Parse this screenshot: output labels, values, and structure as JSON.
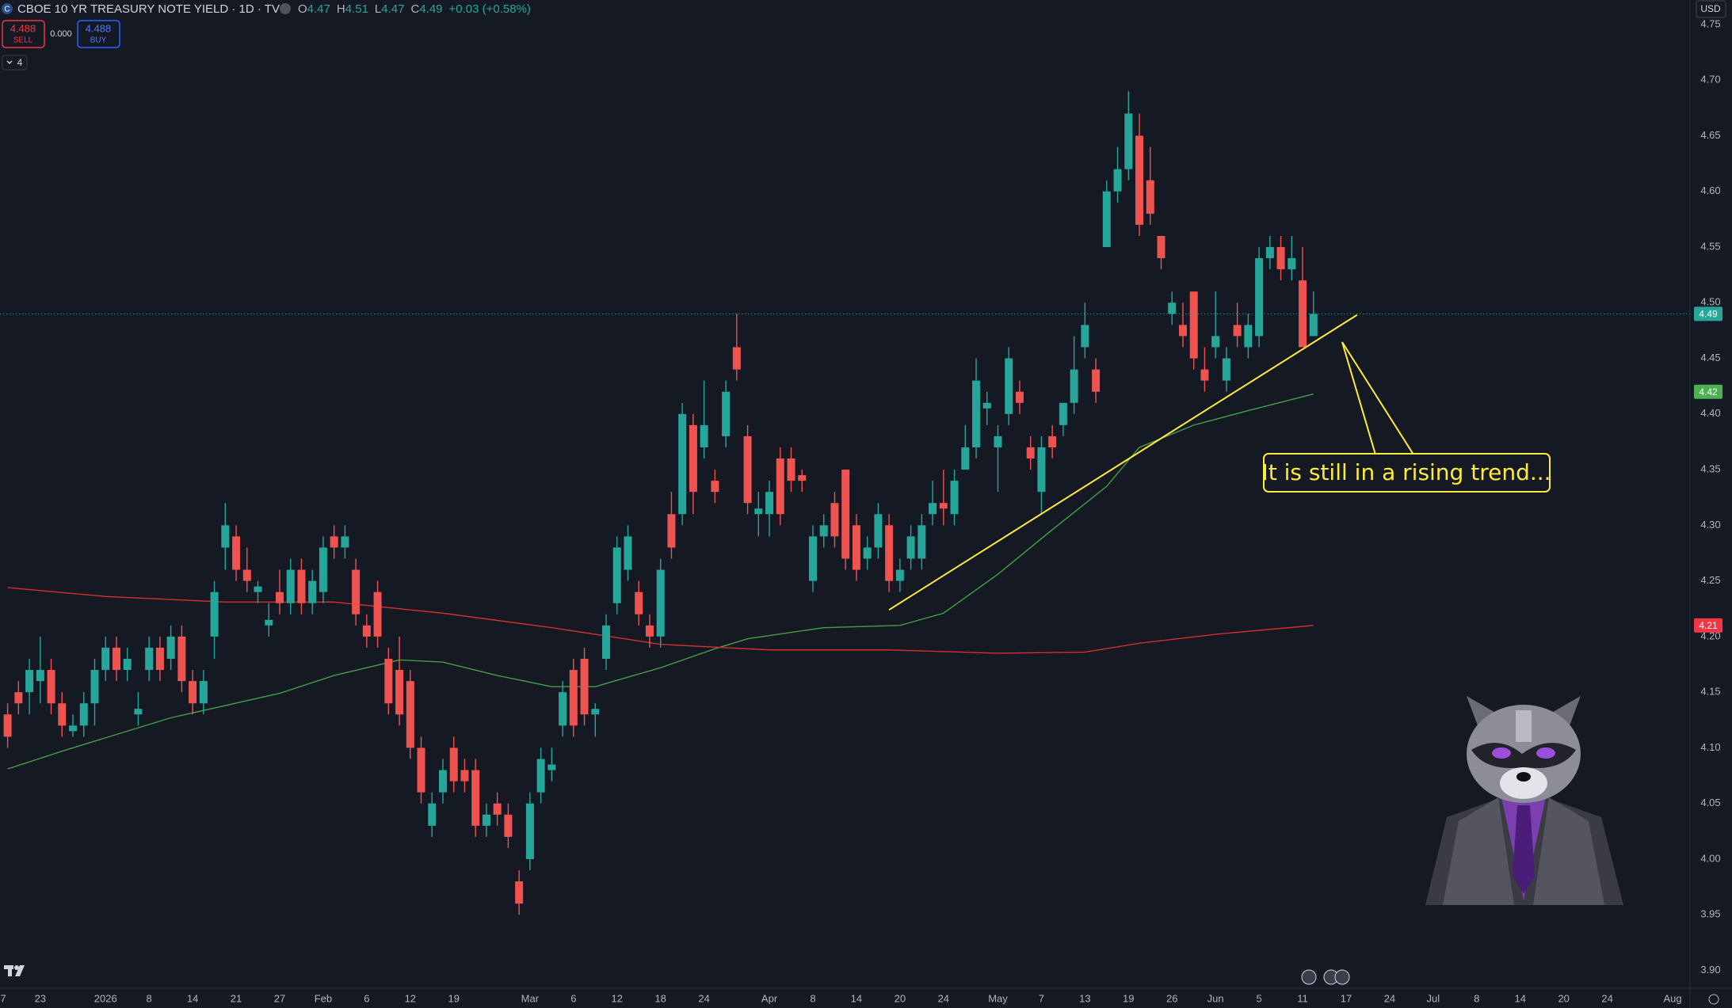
{
  "header": {
    "logo_letter": "C",
    "symbol": "CBOE 10 YR TREASURY NOTE YIELD · 1D · TVC",
    "ohlc": [
      {
        "key": "O",
        "value": "4.47"
      },
      {
        "key": "H",
        "value": "4.51"
      },
      {
        "key": "L",
        "value": "4.47"
      },
      {
        "key": "C",
        "value": "4.49"
      }
    ],
    "change": "+0.03 (+0.58%)",
    "sell": {
      "price": "4.488",
      "label": "SELL"
    },
    "spread": "0.000",
    "buy": {
      "price": "4.488",
      "label": "BUY"
    },
    "indicators": "4",
    "currency": "USD"
  },
  "chart_data": {
    "type": "candlestick",
    "categories": [
      null,
      null,
      null,
      null,
      null,
      null,
      null,
      null,
      null,
      null,
      null,
      null,
      null,
      null,
      null,
      null,
      null,
      null,
      null,
      null,
      null,
      null,
      null,
      null,
      null,
      null,
      null,
      null,
      null,
      null,
      null,
      null,
      null,
      null,
      null,
      null,
      null,
      null,
      null,
      null,
      null,
      null,
      null,
      null,
      null,
      null,
      null,
      null,
      null,
      null,
      null,
      null,
      null,
      null,
      null,
      null,
      null,
      null,
      null,
      null,
      null,
      null,
      null,
      null,
      null,
      null,
      null,
      null,
      null,
      null,
      null,
      null,
      null,
      null,
      null,
      null,
      null,
      null,
      null,
      null,
      null,
      null,
      null,
      null,
      null,
      null,
      null,
      null,
      null,
      null,
      null,
      null,
      null,
      null,
      null,
      null,
      null,
      null,
      null,
      null,
      null,
      null,
      null,
      null,
      null,
      null,
      null,
      null,
      null,
      null,
      null,
      null,
      null,
      null,
      null,
      null,
      null,
      null,
      null,
      null,
      null
    ],
    "open": [
      4.13,
      4.15,
      4.15,
      4.16,
      4.17,
      4.14,
      4.115,
      4.12,
      4.14,
      4.17,
      4.19,
      4.17,
      4.13,
      4.17,
      4.19,
      4.18,
      4.2,
      4.16,
      4.14,
      4.2,
      4.28,
      4.29,
      4.26,
      4.24,
      4.21,
      4.24,
      4.23,
      4.26,
      4.23,
      4.24,
      4.29,
      4.28,
      4.26,
      4.21,
      4.24,
      4.18,
      4.17,
      4.16,
      4.1,
      4.03,
      4.06,
      4.1,
      4.08,
      4.08,
      4.03,
      4.05,
      4.04,
      3.98,
      4.0,
      4.06,
      4.08,
      4.12,
      4.17,
      4.18,
      4.13,
      4.18,
      4.23,
      4.26,
      4.24,
      4.21,
      4.2,
      4.31,
      4.31,
      4.39,
      4.37,
      4.34,
      4.38,
      4.46,
      4.38,
      4.31,
      4.31,
      4.36,
      4.36,
      4.345,
      4.25,
      4.29,
      4.32,
      4.35,
      4.3,
      4.27,
      4.28,
      4.3,
      4.25,
      4.27,
      4.27,
      4.31,
      4.32,
      4.31,
      4.35,
      4.37,
      4.405,
      4.37,
      4.4,
      4.42,
      4.37,
      4.33,
      4.38,
      4.39,
      4.41,
      4.46,
      4.44,
      4.55,
      4.6,
      4.62,
      4.65,
      4.61,
      4.56,
      4.49,
      4.48,
      4.51,
      4.44,
      4.46,
      4.43,
      4.48,
      4.46,
      4.47,
      4.54,
      4.55,
      4.53,
      4.52,
      4.47
    ],
    "high": [
      4.14,
      4.16,
      4.18,
      4.2,
      4.18,
      4.15,
      4.13,
      4.15,
      4.18,
      4.2,
      4.2,
      4.19,
      4.15,
      4.2,
      4.2,
      4.21,
      4.21,
      4.17,
      4.17,
      4.25,
      4.32,
      4.3,
      4.28,
      4.25,
      4.23,
      4.26,
      4.27,
      4.27,
      4.26,
      4.29,
      4.3,
      4.3,
      4.27,
      4.22,
      4.25,
      4.19,
      4.2,
      4.17,
      4.11,
      4.06,
      4.09,
      4.11,
      4.09,
      4.09,
      4.05,
      4.06,
      4.05,
      3.99,
      4.06,
      4.1,
      4.1,
      4.16,
      4.18,
      4.19,
      4.14,
      4.22,
      4.29,
      4.3,
      4.25,
      4.22,
      4.27,
      4.33,
      4.41,
      4.4,
      4.43,
      4.35,
      4.43,
      4.49,
      4.39,
      4.33,
      4.34,
      4.37,
      4.37,
      4.35,
      4.3,
      4.31,
      4.33,
      4.35,
      4.31,
      4.29,
      4.32,
      4.31,
      4.27,
      4.3,
      4.31,
      4.34,
      4.35,
      4.35,
      4.39,
      4.45,
      4.42,
      4.39,
      4.46,
      4.43,
      4.38,
      4.38,
      4.39,
      4.41,
      4.47,
      4.5,
      4.45,
      4.61,
      4.64,
      4.69,
      4.67,
      4.64,
      4.56,
      4.51,
      4.5,
      4.51,
      4.46,
      4.51,
      4.46,
      4.5,
      4.49,
      4.55,
      4.56,
      4.56,
      4.56,
      4.55,
      4.51
    ],
    "low": [
      4.1,
      4.13,
      4.13,
      4.14,
      4.13,
      4.11,
      4.11,
      4.11,
      4.12,
      4.16,
      4.16,
      4.16,
      4.12,
      4.16,
      4.16,
      4.17,
      4.15,
      4.13,
      4.13,
      4.18,
      4.26,
      4.25,
      4.24,
      4.23,
      4.2,
      4.22,
      4.22,
      4.22,
      4.22,
      4.23,
      4.27,
      4.27,
      4.21,
      4.19,
      4.19,
      4.13,
      4.12,
      4.09,
      4.05,
      4.02,
      4.05,
      4.06,
      4.06,
      4.02,
      4.02,
      4.03,
      4.01,
      3.95,
      3.99,
      4.05,
      4.07,
      4.11,
      4.11,
      4.12,
      4.11,
      4.17,
      4.22,
      4.25,
      4.21,
      4.19,
      4.19,
      4.27,
      4.3,
      4.31,
      4.36,
      4.32,
      4.37,
      4.43,
      4.31,
      4.29,
      4.29,
      4.3,
      4.33,
      4.33,
      4.24,
      4.28,
      4.28,
      4.26,
      4.25,
      4.26,
      4.27,
      4.24,
      4.24,
      4.26,
      4.26,
      4.3,
      4.3,
      4.3,
      4.35,
      4.36,
      4.39,
      4.33,
      4.39,
      4.4,
      4.35,
      4.31,
      4.36,
      4.38,
      4.4,
      4.45,
      4.41,
      4.55,
      4.59,
      4.61,
      4.56,
      4.57,
      4.53,
      4.48,
      4.46,
      4.44,
      4.42,
      4.45,
      4.42,
      4.46,
      4.45,
      4.46,
      4.53,
      4.52,
      4.52,
      4.46,
      4.47
    ],
    "close": [
      4.11,
      4.14,
      4.17,
      4.17,
      4.14,
      4.12,
      4.12,
      4.14,
      4.17,
      4.19,
      4.17,
      4.18,
      4.135,
      4.19,
      4.17,
      4.2,
      4.16,
      4.14,
      4.16,
      4.24,
      4.3,
      4.26,
      4.25,
      4.245,
      4.215,
      4.23,
      4.26,
      4.23,
      4.25,
      4.28,
      4.28,
      4.29,
      4.22,
      4.2,
      4.2,
      4.14,
      4.13,
      4.1,
      4.06,
      4.05,
      4.08,
      4.07,
      4.07,
      4.03,
      4.04,
      4.04,
      4.02,
      3.96,
      4.05,
      4.09,
      4.085,
      4.15,
      4.12,
      4.13,
      4.135,
      4.21,
      4.28,
      4.29,
      4.22,
      4.2,
      4.26,
      4.28,
      4.4,
      4.33,
      4.39,
      4.33,
      4.42,
      4.44,
      4.32,
      4.315,
      4.33,
      4.31,
      4.34,
      4.34,
      4.29,
      4.3,
      4.29,
      4.27,
      4.26,
      4.28,
      4.31,
      4.25,
      4.26,
      4.29,
      4.3,
      4.32,
      4.315,
      4.34,
      4.37,
      4.43,
      4.41,
      4.38,
      4.45,
      4.41,
      4.36,
      4.37,
      4.37,
      4.41,
      4.44,
      4.48,
      4.42,
      4.6,
      4.62,
      4.67,
      4.57,
      4.58,
      4.54,
      4.5,
      4.47,
      4.45,
      4.43,
      4.47,
      4.45,
      4.47,
      4.48,
      4.54,
      4.55,
      4.53,
      4.54,
      4.46,
      4.49
    ],
    "up_color": "#26a69a",
    "down_color": "#ef5350",
    "lines": [
      {
        "color": "#43a047",
        "x": [
          0,
          5,
          15,
          25,
          30,
          36,
          40,
          45,
          50,
          54,
          60,
          65,
          68,
          75,
          82,
          86,
          91,
          96,
          101,
          104,
          109,
          114,
          120
        ],
        "values": [
          4.081,
          4.097,
          4.127,
          4.149,
          4.165,
          4.179,
          4.177,
          4.165,
          4.155,
          4.155,
          4.172,
          4.189,
          4.198,
          4.208,
          4.21,
          4.221,
          4.256,
          4.296,
          4.335,
          4.37,
          4.39,
          4.403,
          4.418
        ]
      },
      {
        "color": "#d32f2f",
        "x": [
          0,
          9,
          20,
          30,
          40,
          50,
          60,
          70,
          81,
          91,
          99,
          104,
          111,
          120
        ],
        "values": [
          4.244,
          4.236,
          4.231,
          4.231,
          4.221,
          4.208,
          4.193,
          4.188,
          4.188,
          4.185,
          4.186,
          4.194,
          4.202,
          4.21
        ]
      }
    ],
    "trendline": {
      "color": "#ffeb3b",
      "x": [
        81,
        124
      ],
      "values": [
        4.224,
        4.489
      ]
    },
    "annotation": "It is still in a rising trend...",
    "price_labels": [
      {
        "value": 4.49,
        "color": "#26a69a"
      },
      {
        "value": 4.42,
        "color": "#4caf50"
      },
      {
        "value": 4.21,
        "color": "#f23645"
      }
    ],
    "xlim": [
      -0.7,
      154.6
    ],
    "ylim": [
      3.884,
      4.772
    ],
    "xticks": [
      {
        "value": -0.4,
        "label": "7"
      },
      {
        "value": 3,
        "label": "23"
      },
      {
        "value": 9,
        "label": "2026"
      },
      {
        "value": 13,
        "label": "8"
      },
      {
        "value": 17,
        "label": "14"
      },
      {
        "value": 21,
        "label": "21"
      },
      {
        "value": 25,
        "label": "27"
      },
      {
        "value": 29,
        "label": "Feb"
      },
      {
        "value": 33,
        "label": "6"
      },
      {
        "value": 37,
        "label": "12"
      },
      {
        "value": 41,
        "label": "19"
      },
      {
        "value": 48,
        "label": "Mar"
      },
      {
        "value": 52,
        "label": "6"
      },
      {
        "value": 56,
        "label": "12"
      },
      {
        "value": 60,
        "label": "18"
      },
      {
        "value": 64,
        "label": "24"
      },
      {
        "value": 70,
        "label": "Apr"
      },
      {
        "value": 74,
        "label": "8"
      },
      {
        "value": 78,
        "label": "14"
      },
      {
        "value": 82,
        "label": "20"
      },
      {
        "value": 86,
        "label": "24"
      },
      {
        "value": 91,
        "label": "May"
      },
      {
        "value": 95,
        "label": "7"
      },
      {
        "value": 99,
        "label": "13"
      },
      {
        "value": 103,
        "label": "19"
      },
      {
        "value": 107,
        "label": "26"
      },
      {
        "value": 111,
        "label": "Jun"
      },
      {
        "value": 115,
        "label": "5"
      },
      {
        "value": 119,
        "label": "11"
      },
      {
        "value": 123,
        "label": "17"
      },
      {
        "value": 127,
        "label": "24"
      },
      {
        "value": 131,
        "label": "Jul"
      },
      {
        "value": 135,
        "label": "8"
      },
      {
        "value": 139,
        "label": "14"
      },
      {
        "value": 143,
        "label": "20"
      },
      {
        "value": 147,
        "label": "24"
      },
      {
        "value": 153,
        "label": "Aug"
      }
    ],
    "yticks": [
      {
        "value": 3.9,
        "label": "3.90"
      },
      3.95,
      {
        "value": 4,
        "label": "4.00"
      },
      4.05,
      {
        "value": 4.1,
        "label": "4.10"
      },
      4.15,
      {
        "value": 4.2,
        "label": "4.20"
      },
      4.25,
      {
        "value": 4.3,
        "label": "4.30"
      },
      4.35,
      {
        "value": 4.4,
        "label": "4.40"
      },
      4.45,
      {
        "value": 4.5,
        "label": "4.50"
      },
      4.55,
      {
        "value": 4.6,
        "label": "4.60"
      },
      4.65,
      {
        "value": 4.7,
        "label": "4.70"
      },
      4.75
    ],
    "grid": false
  }
}
